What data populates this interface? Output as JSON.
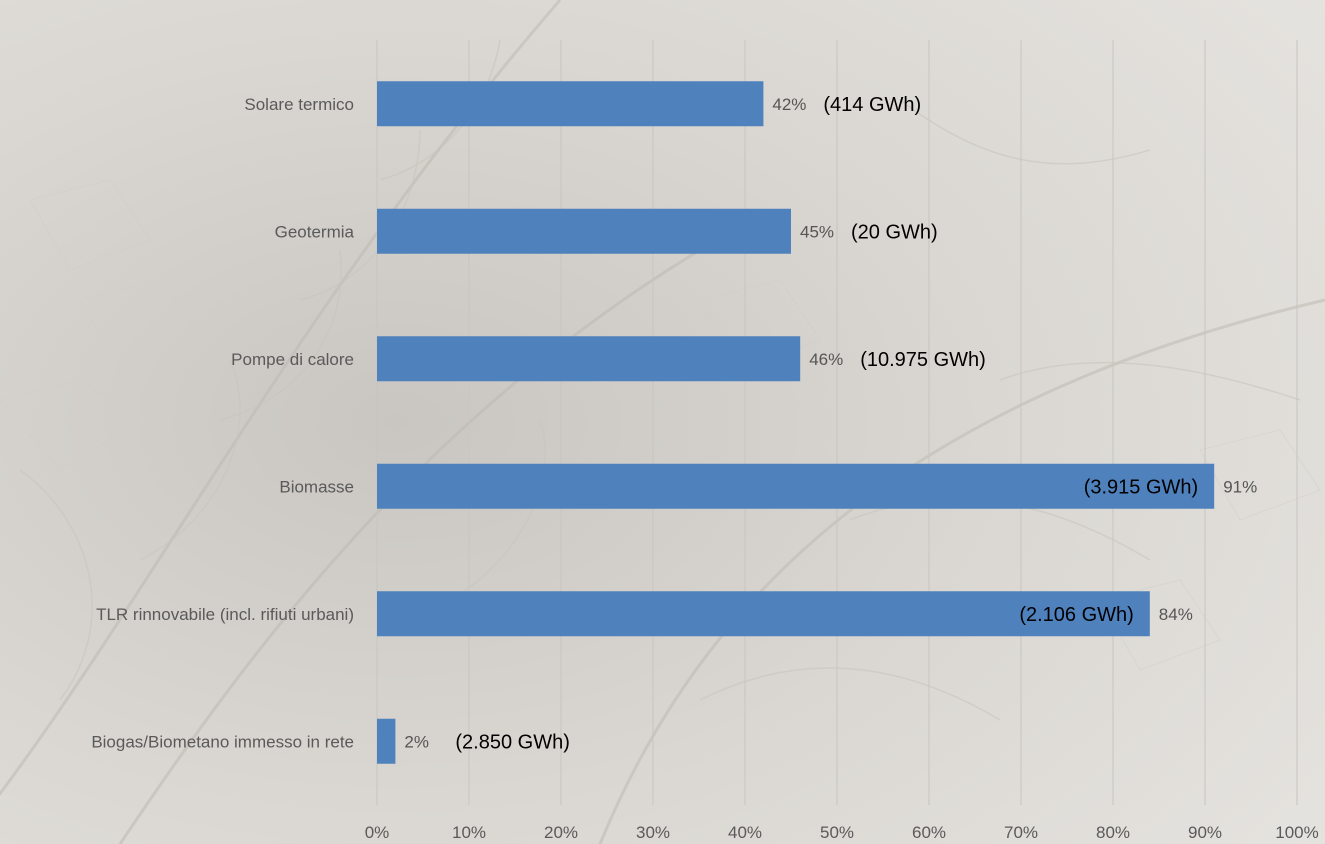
{
  "chart_data": {
    "type": "bar",
    "orientation": "horizontal",
    "categories": [
      "Solare termico",
      "Geotermia",
      "Pompe di calore",
      "Biomasse",
      "TLR rinnovabile (incl. rifiuti urbani)",
      "Biogas/Biometano immesso in rete"
    ],
    "values": [
      42,
      45,
      46,
      91,
      84,
      2
    ],
    "value_labels": [
      "42%",
      "45%",
      "46%",
      "91%",
      "84%",
      "2%"
    ],
    "annotations": [
      "(414 GWh)",
      "(20 GWh)",
      "(10.975 GWh)",
      "(3.915 GWh)",
      "(2.106 GWh)",
      "(2.850 GWh)"
    ],
    "xlim": [
      0,
      100
    ],
    "xticks": [
      "0%",
      "10%",
      "20%",
      "30%",
      "40%",
      "50%",
      "60%",
      "70%",
      "80%",
      "90%",
      "100%"
    ],
    "grid": "vertical",
    "bar_color": "#4f81bd"
  }
}
